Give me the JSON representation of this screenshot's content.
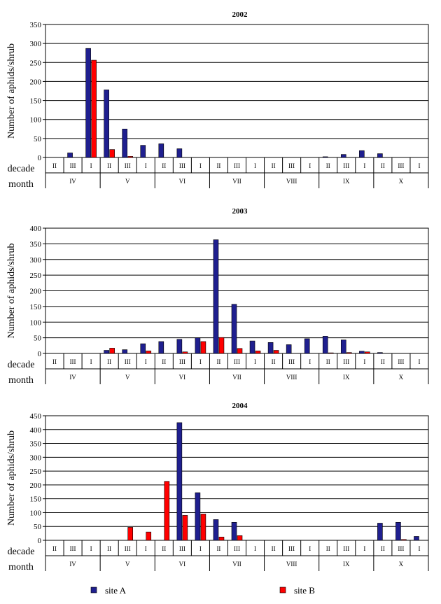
{
  "chart_data": [
    {
      "type": "bar",
      "title": "2002",
      "ylabel": "Number of aphids/shrub",
      "ylim": [
        0,
        350
      ],
      "yticks": [
        0,
        50,
        100,
        150,
        200,
        250,
        300,
        350
      ],
      "decades": [
        "II",
        "III",
        "I",
        "II",
        "III",
        "I",
        "II",
        "III",
        "I",
        "II",
        "III",
        "I",
        "II",
        "III",
        "I",
        "II",
        "III",
        "I",
        "II",
        "III",
        "I"
      ],
      "months": [
        "IV",
        "V",
        "VI",
        "VII",
        "VIII",
        "IX",
        "X"
      ],
      "row_labels": {
        "decade": "decade",
        "month": "month"
      },
      "grid": true,
      "series": [
        {
          "name": "site A",
          "color": "#1f1f8f",
          "values": [
            0,
            12,
            287,
            178,
            75,
            32,
            36,
            23,
            0,
            0,
            0,
            0,
            0,
            0,
            0,
            2,
            8,
            18,
            10,
            0,
            0
          ]
        },
        {
          "name": "site B",
          "color": "#ff0000",
          "values": [
            0,
            0,
            256,
            21,
            3,
            0,
            0,
            0,
            0,
            0,
            0,
            0,
            0,
            0,
            0,
            0,
            0,
            0,
            0,
            0,
            0
          ]
        }
      ]
    },
    {
      "type": "bar",
      "title": "2003",
      "ylabel": "Number of aphids/shrub",
      "ylim": [
        0,
        400
      ],
      "yticks": [
        0,
        50,
        100,
        150,
        200,
        250,
        300,
        350,
        400
      ],
      "decades": [
        "II",
        "III",
        "I",
        "II",
        "III",
        "I",
        "II",
        "III",
        "I",
        "II",
        "III",
        "I",
        "II",
        "III",
        "I",
        "II",
        "III",
        "I",
        "II",
        "III",
        "I"
      ],
      "months": [
        "IV",
        "V",
        "VI",
        "VII",
        "VIII",
        "IX",
        "X"
      ],
      "row_labels": {
        "decade": "decade",
        "month": "month"
      },
      "grid": true,
      "series": [
        {
          "name": "site A",
          "color": "#1f1f8f",
          "values": [
            0,
            0,
            0,
            10,
            12,
            31,
            38,
            45,
            50,
            363,
            157,
            40,
            35,
            28,
            47,
            55,
            43,
            7,
            3,
            0,
            0
          ]
        },
        {
          "name": "site B",
          "color": "#ff0000",
          "values": [
            0,
            0,
            0,
            17,
            0,
            8,
            0,
            5,
            38,
            51,
            16,
            8,
            10,
            0,
            0,
            2,
            3,
            5,
            0,
            0,
            0
          ]
        }
      ]
    },
    {
      "type": "bar",
      "title": "2004",
      "ylabel": "Number of aphids/shrub",
      "ylim": [
        0,
        450
      ],
      "yticks": [
        0,
        50,
        100,
        150,
        200,
        250,
        300,
        350,
        400,
        450
      ],
      "decades": [
        "II",
        "III",
        "I",
        "II",
        "III",
        "I",
        "II",
        "III",
        "I",
        "II",
        "III",
        "I",
        "II",
        "III",
        "I",
        "II",
        "III",
        "I",
        "II",
        "III",
        "I"
      ],
      "months": [
        "IV",
        "V",
        "VI",
        "VII",
        "VIII",
        "IX",
        "X"
      ],
      "row_labels": {
        "decade": "decade",
        "month": "month"
      },
      "grid": true,
      "series": [
        {
          "name": "site A",
          "color": "#1f1f8f",
          "values": [
            0,
            0,
            0,
            0,
            0,
            0,
            0,
            425,
            172,
            75,
            65,
            0,
            0,
            0,
            0,
            0,
            0,
            0,
            62,
            65,
            14
          ]
        },
        {
          "name": "site B",
          "color": "#ff0000",
          "values": [
            0,
            0,
            0,
            0,
            47,
            30,
            213,
            90,
            95,
            12,
            17,
            0,
            0,
            0,
            0,
            0,
            0,
            0,
            0,
            3,
            0
          ]
        }
      ]
    }
  ],
  "legend": {
    "placement": "bottom",
    "items": [
      {
        "label": "site A",
        "color": "#1f1f8f"
      },
      {
        "label": "site B",
        "color": "#ff0000"
      }
    ]
  }
}
